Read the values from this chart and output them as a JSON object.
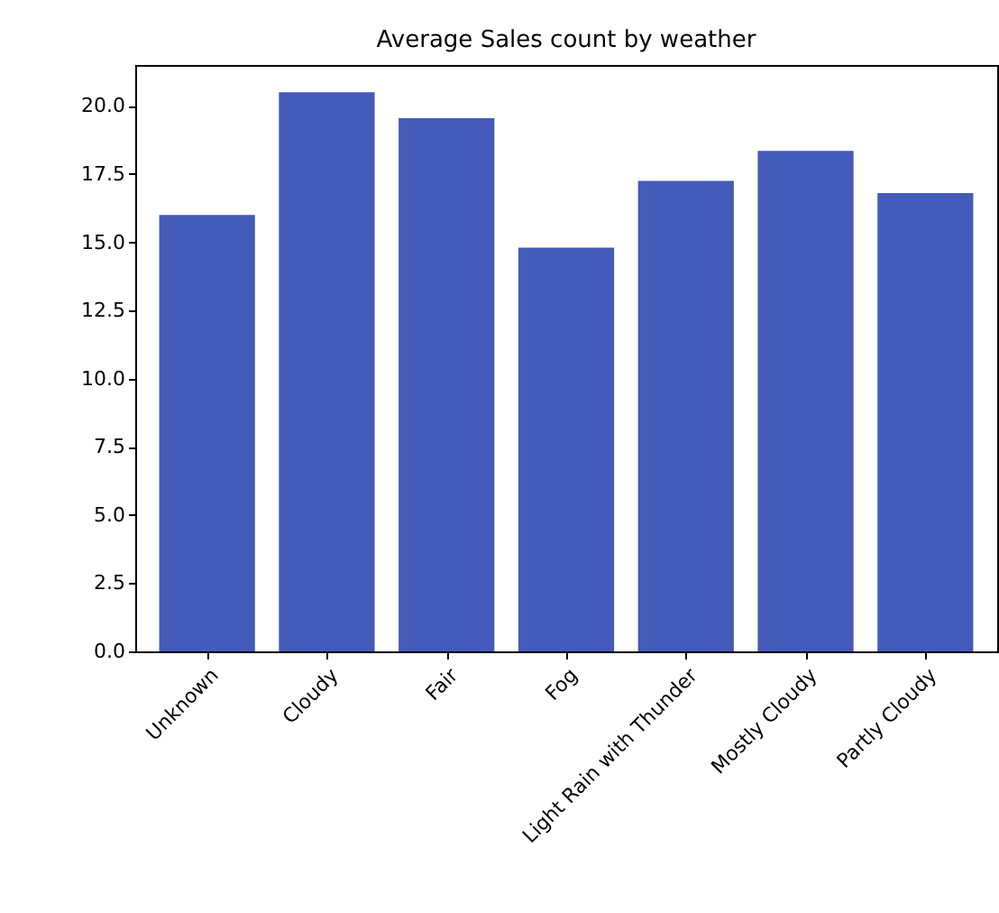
{
  "chart_data": {
    "type": "bar",
    "title": "Average Sales count by weather",
    "categories": [
      "Unknown",
      "Cloudy",
      "Fair",
      "Fog",
      "Light Rain with Thunder",
      "Mostly Cloudy",
      "Partly Cloudy"
    ],
    "values": [
      16.0,
      20.5,
      19.55,
      14.8,
      17.25,
      18.35,
      16.8
    ],
    "color": "#445bb9",
    "ylim": [
      0,
      21.5
    ],
    "yticks": [
      {
        "value": 0,
        "label": "0.0"
      },
      {
        "value": 2.5,
        "label": "2.5"
      },
      {
        "value": 5,
        "label": "5.0"
      },
      {
        "value": 7.5,
        "label": "7.5"
      },
      {
        "value": 10,
        "label": "10.0"
      },
      {
        "value": 12.5,
        "label": "12.5"
      },
      {
        "value": 15,
        "label": "15.0"
      },
      {
        "value": 17.5,
        "label": "17.5"
      },
      {
        "value": 20,
        "label": "20.0"
      }
    ],
    "grid": false
  }
}
